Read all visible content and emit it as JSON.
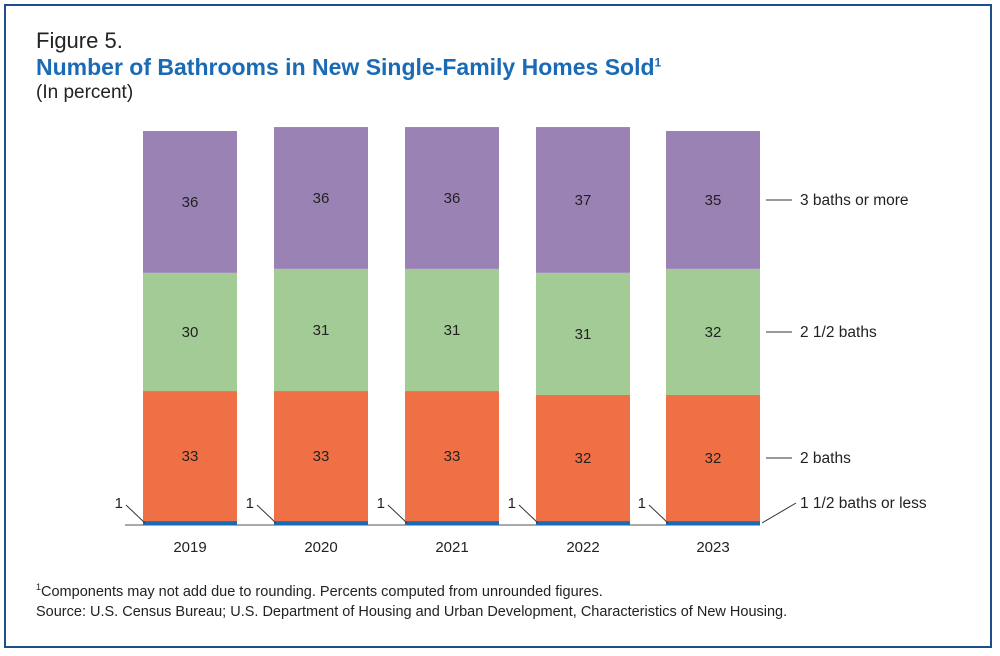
{
  "figure_label": "Figure 5.",
  "title": "Number of Bathrooms in New Single-Family Homes Sold",
  "title_footnote_mark": "1",
  "subtitle": "(In percent)",
  "footnote_mark": "1",
  "footnote": "Components may not add due to rounding.  Percents computed from unrounded figures.",
  "source": "Source: U.S. Census Bureau; U.S. Department of Housing and Urban Development, Characteristics of New Housing.",
  "chart_data": {
    "type": "bar",
    "stacked": true,
    "categories": [
      "2019",
      "2020",
      "2021",
      "2022",
      "2023"
    ],
    "series": [
      {
        "name": "1 1/2 baths or less",
        "values": [
          1,
          1,
          1,
          1,
          1
        ],
        "color": "#1a6bb5",
        "label_outside": true
      },
      {
        "name": "2 baths",
        "values": [
          33,
          33,
          33,
          32,
          32
        ],
        "color": "#f07046"
      },
      {
        "name": "2 1/2 baths",
        "values": [
          30,
          31,
          31,
          31,
          32
        ],
        "color": "#a2cb96"
      },
      {
        "name": "3 baths or more",
        "values": [
          36,
          36,
          36,
          37,
          35
        ],
        "color": "#9b82b5"
      }
    ],
    "ylim": [
      0,
      100
    ],
    "grid": false,
    "legend": "right"
  }
}
